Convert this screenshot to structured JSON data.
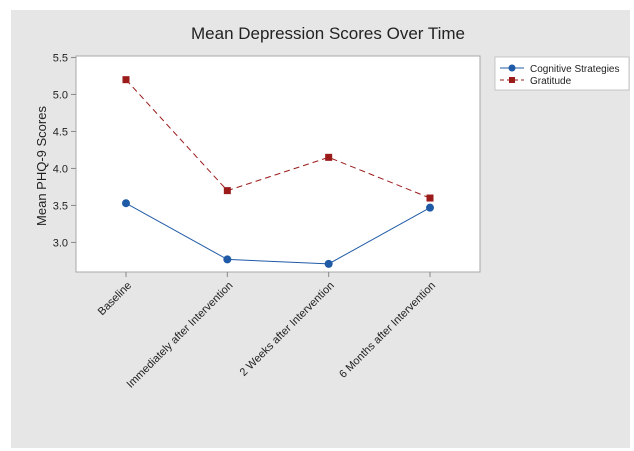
{
  "chart_data": {
    "type": "line",
    "title": "Mean Depression Scores Over Time",
    "xlabel": "",
    "ylabel": "Mean PHQ-9 Scores",
    "categories": [
      "Baseline",
      "Immediately after Intervention",
      "2 Weeks after Intervention",
      "6 Months after Intervention"
    ],
    "ylim": [
      2.6,
      5.52
    ],
    "yticks": [
      3.0,
      3.5,
      4.0,
      4.5,
      5.0,
      5.5
    ],
    "ytick_labels": [
      "3.0",
      "3.5",
      "4.0",
      "4.5",
      "5.0",
      "5.5"
    ],
    "grid": false,
    "legend_position": "right",
    "series": [
      {
        "name": "Cognitive Strategies",
        "values": [
          3.53,
          2.77,
          2.71,
          3.47
        ],
        "color": "#1f5aa6",
        "marker": "circle",
        "line": "solid"
      },
      {
        "name": "Gratitude",
        "values": [
          5.2,
          3.7,
          4.15,
          3.6
        ],
        "color": "#9b1b1b",
        "marker": "square",
        "line": "dashed"
      }
    ]
  },
  "colors": {
    "background": "#e6e6e6",
    "plot_area": "#ffffff",
    "axis": "#888888",
    "text": "#222222"
  }
}
